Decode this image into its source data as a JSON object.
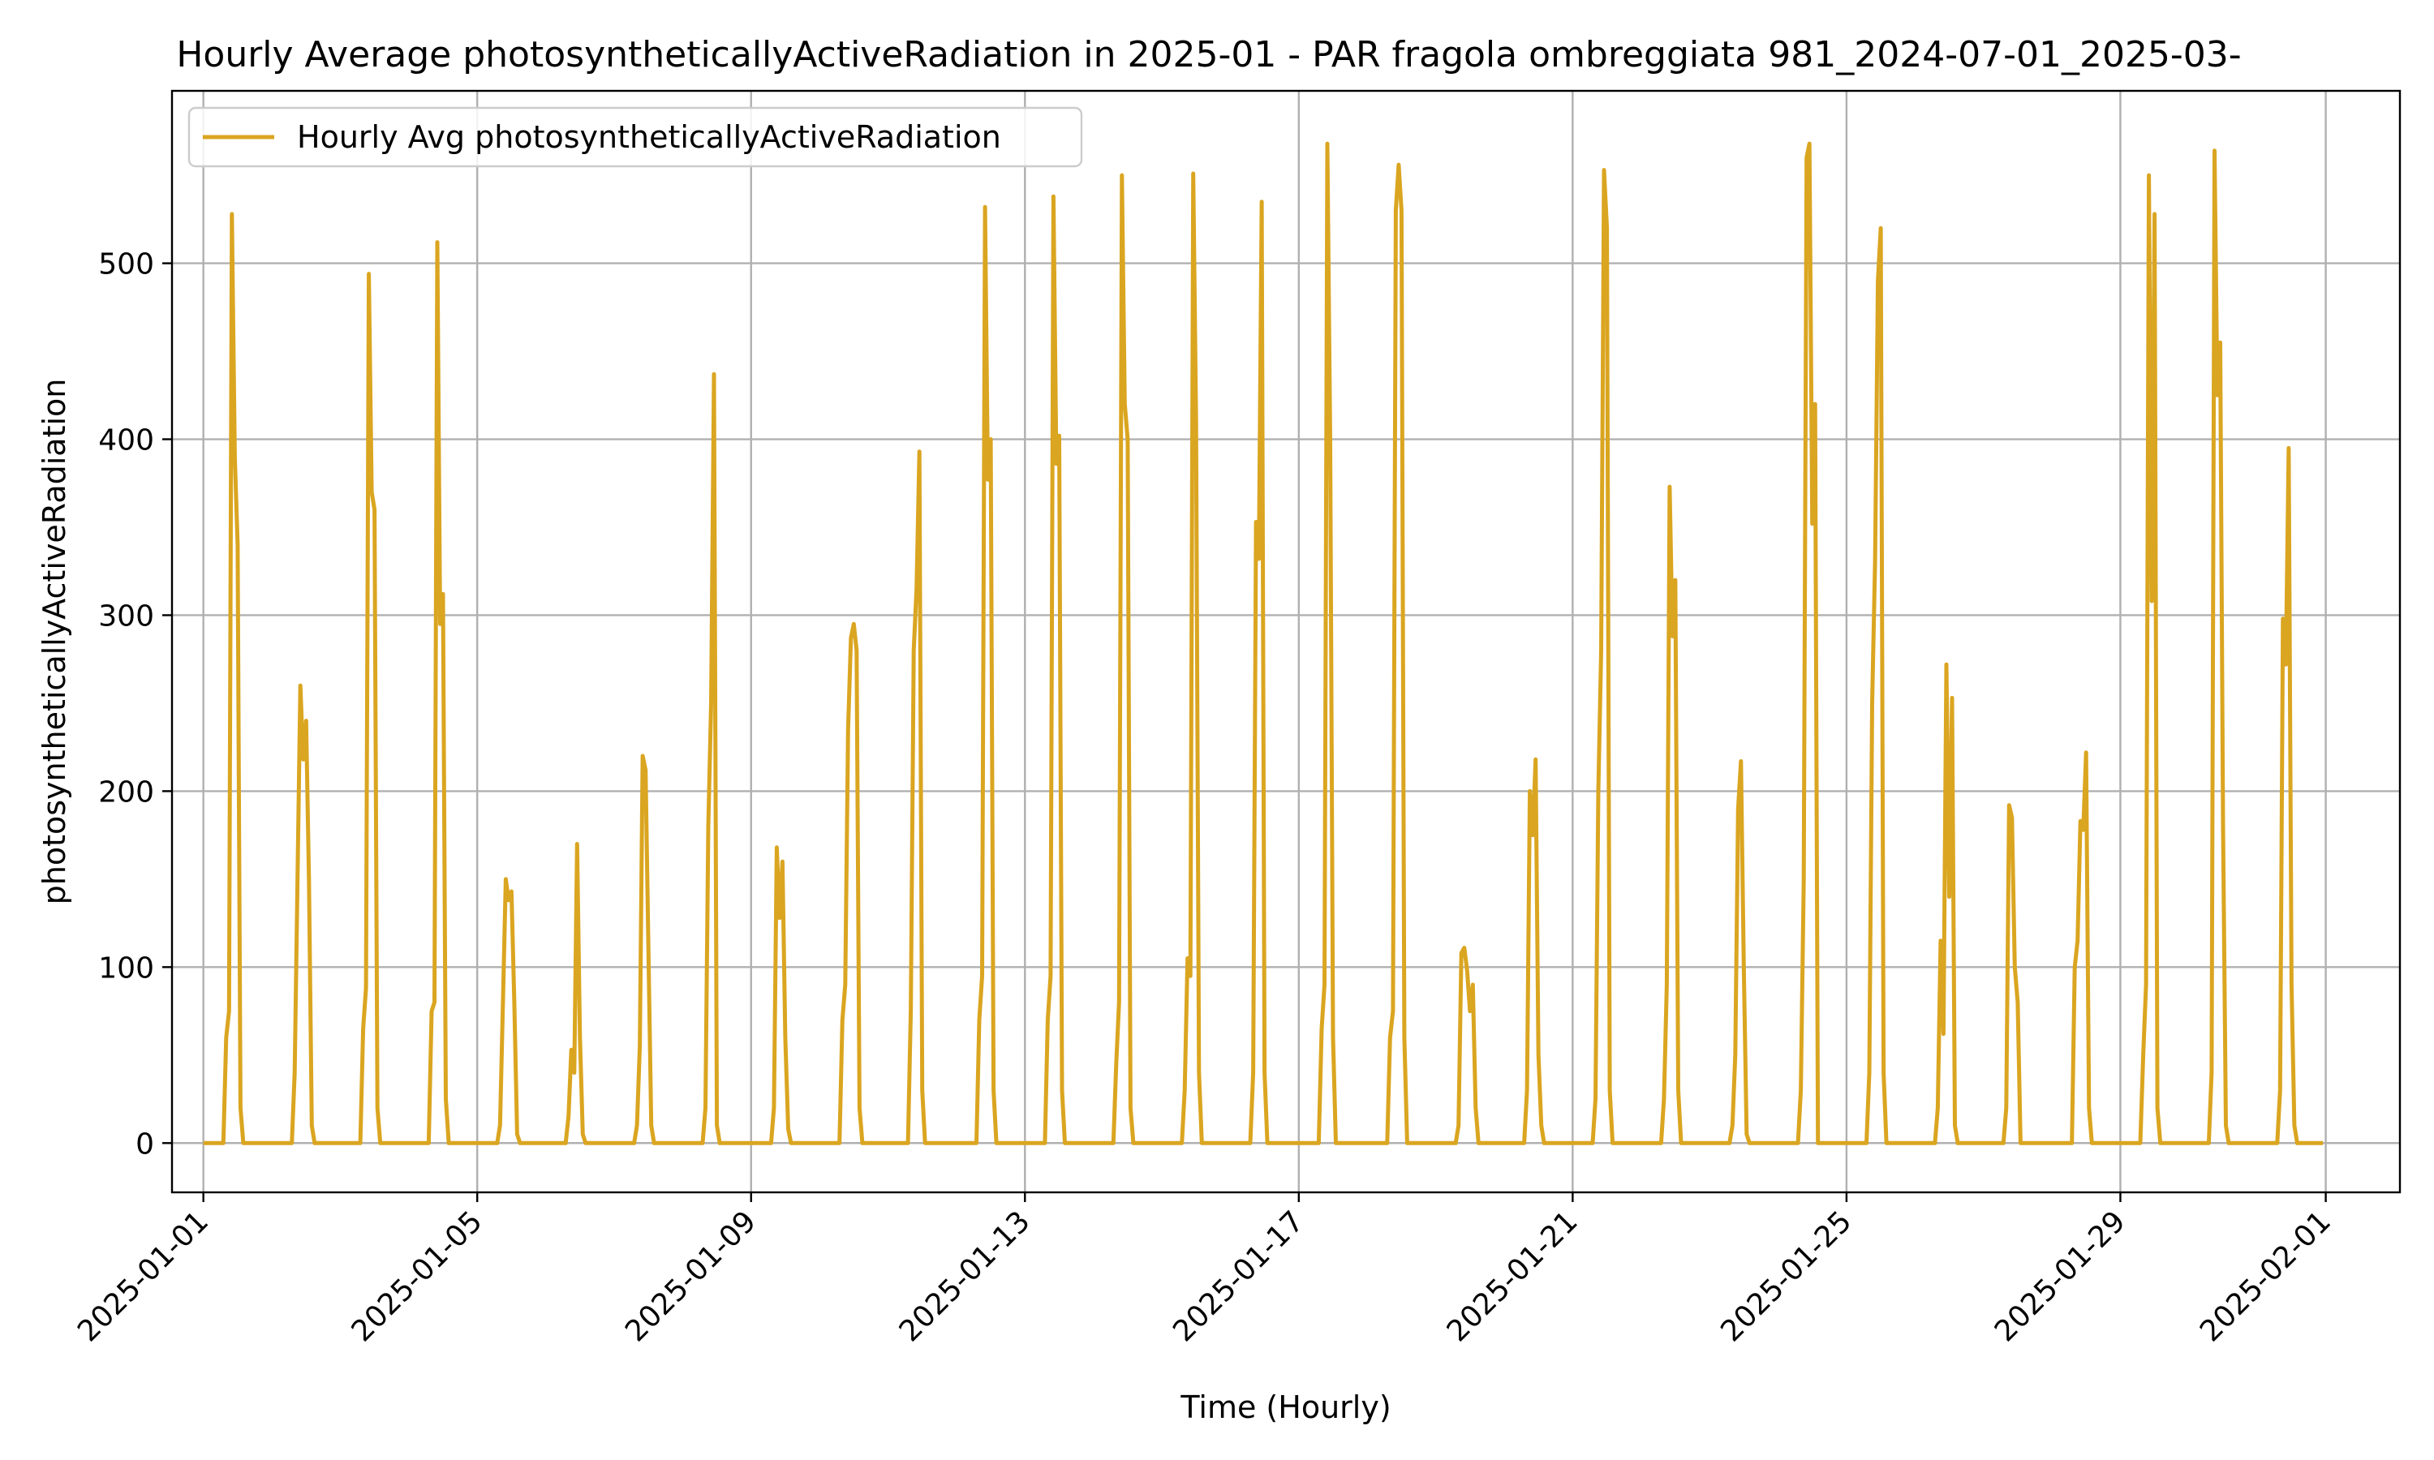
{
  "chart_data": {
    "type": "line",
    "title": "Hourly Average photosyntheticallyActiveRadiation in 2025-01 - PAR fragola ombreggiata 981_2024-07-01_2025-03-",
    "xlabel": "Time (Hourly)",
    "ylabel": "photosyntheticallyActiveRadiation",
    "x_ticks": [
      "2025-01-01",
      "2025-01-05",
      "2025-01-09",
      "2025-01-13",
      "2025-01-17",
      "2025-01-21",
      "2025-01-25",
      "2025-01-29",
      "2025-02-01"
    ],
    "y_ticks": [
      "0",
      "100",
      "200",
      "300",
      "400",
      "500"
    ],
    "xlim": [
      "2024-12-31 13:00",
      "2025-02-02 02:00"
    ],
    "ylim": [
      -28,
      598
    ],
    "grid": true,
    "legend_position": "top-left",
    "series": [
      {
        "name": "Hourly Avg photosyntheticallyActiveRadiation",
        "color": "#daa520",
        "points": [
          [
            "2025-01-01 00:00",
            0
          ],
          [
            "2025-01-01 07:00",
            0
          ],
          [
            "2025-01-01 08:00",
            60
          ],
          [
            "2025-01-01 09:00",
            75
          ],
          [
            "2025-01-01 10:00",
            528
          ],
          [
            "2025-01-01 11:00",
            390
          ],
          [
            "2025-01-01 12:00",
            340
          ],
          [
            "2025-01-01 13:00",
            20
          ],
          [
            "2025-01-01 14:00",
            0
          ],
          [
            "2025-01-02 07:00",
            0
          ],
          [
            "2025-01-02 08:00",
            40
          ],
          [
            "2025-01-02 09:00",
            150
          ],
          [
            "2025-01-02 10:00",
            260
          ],
          [
            "2025-01-02 11:00",
            218
          ],
          [
            "2025-01-02 12:00",
            240
          ],
          [
            "2025-01-02 13:00",
            150
          ],
          [
            "2025-01-02 14:00",
            10
          ],
          [
            "2025-01-02 15:00",
            0
          ],
          [
            "2025-01-03 07:00",
            0
          ],
          [
            "2025-01-03 08:00",
            65
          ],
          [
            "2025-01-03 09:00",
            88
          ],
          [
            "2025-01-03 10:00",
            494
          ],
          [
            "2025-01-03 11:00",
            370
          ],
          [
            "2025-01-03 12:00",
            360
          ],
          [
            "2025-01-03 13:00",
            20
          ],
          [
            "2025-01-03 14:00",
            0
          ],
          [
            "2025-01-04 07:00",
            0
          ],
          [
            "2025-01-04 08:00",
            75
          ],
          [
            "2025-01-04 09:00",
            80
          ],
          [
            "2025-01-04 10:00",
            512
          ],
          [
            "2025-01-04 11:00",
            295
          ],
          [
            "2025-01-04 12:00",
            312
          ],
          [
            "2025-01-04 13:00",
            25
          ],
          [
            "2025-01-04 14:00",
            0
          ],
          [
            "2025-01-05 07:00",
            0
          ],
          [
            "2025-01-05 08:00",
            10
          ],
          [
            "2025-01-05 09:00",
            80
          ],
          [
            "2025-01-05 10:00",
            150
          ],
          [
            "2025-01-05 11:00",
            138
          ],
          [
            "2025-01-05 12:00",
            143
          ],
          [
            "2025-01-05 13:00",
            80
          ],
          [
            "2025-01-05 14:00",
            5
          ],
          [
            "2025-01-05 15:00",
            0
          ],
          [
            "2025-01-06 07:00",
            0
          ],
          [
            "2025-01-06 08:00",
            15
          ],
          [
            "2025-01-06 09:00",
            53
          ],
          [
            "2025-01-06 10:00",
            40
          ],
          [
            "2025-01-06 11:00",
            170
          ],
          [
            "2025-01-06 12:00",
            60
          ],
          [
            "2025-01-06 13:00",
            5
          ],
          [
            "2025-01-06 14:00",
            0
          ],
          [
            "2025-01-07 07:00",
            0
          ],
          [
            "2025-01-07 08:00",
            10
          ],
          [
            "2025-01-07 09:00",
            55
          ],
          [
            "2025-01-07 10:00",
            220
          ],
          [
            "2025-01-07 11:00",
            212
          ],
          [
            "2025-01-07 12:00",
            110
          ],
          [
            "2025-01-07 13:00",
            10
          ],
          [
            "2025-01-07 14:00",
            0
          ],
          [
            "2025-01-08 07:00",
            0
          ],
          [
            "2025-01-08 08:00",
            20
          ],
          [
            "2025-01-08 09:00",
            180
          ],
          [
            "2025-01-08 10:00",
            250
          ],
          [
            "2025-01-08 11:00",
            437
          ],
          [
            "2025-01-08 12:00",
            10
          ],
          [
            "2025-01-08 13:00",
            0
          ],
          [
            "2025-01-09 07:00",
            0
          ],
          [
            "2025-01-09 08:00",
            20
          ],
          [
            "2025-01-09 09:00",
            168
          ],
          [
            "2025-01-09 10:00",
            128
          ],
          [
            "2025-01-09 11:00",
            160
          ],
          [
            "2025-01-09 12:00",
            60
          ],
          [
            "2025-01-09 13:00",
            8
          ],
          [
            "2025-01-09 14:00",
            0
          ],
          [
            "2025-01-10 07:00",
            0
          ],
          [
            "2025-01-10 08:00",
            70
          ],
          [
            "2025-01-10 09:00",
            90
          ],
          [
            "2025-01-10 10:00",
            235
          ],
          [
            "2025-01-10 11:00",
            287
          ],
          [
            "2025-01-10 12:00",
            295
          ],
          [
            "2025-01-10 13:00",
            280
          ],
          [
            "2025-01-10 14:00",
            20
          ],
          [
            "2025-01-10 15:00",
            0
          ],
          [
            "2025-01-11 07:00",
            0
          ],
          [
            "2025-01-11 08:00",
            75
          ],
          [
            "2025-01-11 09:00",
            280
          ],
          [
            "2025-01-11 10:00",
            315
          ],
          [
            "2025-01-11 11:00",
            393
          ],
          [
            "2025-01-11 12:00",
            30
          ],
          [
            "2025-01-11 13:00",
            0
          ],
          [
            "2025-01-12 07:00",
            0
          ],
          [
            "2025-01-12 08:00",
            70
          ],
          [
            "2025-01-12 09:00",
            95
          ],
          [
            "2025-01-12 10:00",
            532
          ],
          [
            "2025-01-12 11:00",
            377
          ],
          [
            "2025-01-12 12:00",
            400
          ],
          [
            "2025-01-12 13:00",
            30
          ],
          [
            "2025-01-12 14:00",
            0
          ],
          [
            "2025-01-13 07:00",
            0
          ],
          [
            "2025-01-13 08:00",
            70
          ],
          [
            "2025-01-13 09:00",
            95
          ],
          [
            "2025-01-13 10:00",
            538
          ],
          [
            "2025-01-13 11:00",
            386
          ],
          [
            "2025-01-13 12:00",
            402
          ],
          [
            "2025-01-13 13:00",
            30
          ],
          [
            "2025-01-13 14:00",
            0
          ],
          [
            "2025-01-14 07:00",
            0
          ],
          [
            "2025-01-14 08:00",
            45
          ],
          [
            "2025-01-14 09:00",
            80
          ],
          [
            "2025-01-14 10:00",
            550
          ],
          [
            "2025-01-14 11:00",
            420
          ],
          [
            "2025-01-14 12:00",
            400
          ],
          [
            "2025-01-14 13:00",
            20
          ],
          [
            "2025-01-14 14:00",
            0
          ],
          [
            "2025-01-15 07:00",
            0
          ],
          [
            "2025-01-15 08:00",
            30
          ],
          [
            "2025-01-15 09:00",
            105
          ],
          [
            "2025-01-15 10:00",
            95
          ],
          [
            "2025-01-15 11:00",
            551
          ],
          [
            "2025-01-15 12:00",
            410
          ],
          [
            "2025-01-15 13:00",
            40
          ],
          [
            "2025-01-15 14:00",
            0
          ],
          [
            "2025-01-16 07:00",
            0
          ],
          [
            "2025-01-16 08:00",
            40
          ],
          [
            "2025-01-16 09:00",
            353
          ],
          [
            "2025-01-16 10:00",
            332
          ],
          [
            "2025-01-16 11:00",
            535
          ],
          [
            "2025-01-16 12:00",
            40
          ],
          [
            "2025-01-16 13:00",
            0
          ],
          [
            "2025-01-17 07:00",
            0
          ],
          [
            "2025-01-17 08:00",
            65
          ],
          [
            "2025-01-17 09:00",
            90
          ],
          [
            "2025-01-17 10:00",
            568
          ],
          [
            "2025-01-17 11:00",
            400
          ],
          [
            "2025-01-17 12:00",
            60
          ],
          [
            "2025-01-17 13:00",
            0
          ],
          [
            "2025-01-18 07:00",
            0
          ],
          [
            "2025-01-18 08:00",
            60
          ],
          [
            "2025-01-18 09:00",
            75
          ],
          [
            "2025-01-18 10:00",
            530
          ],
          [
            "2025-01-18 11:00",
            556
          ],
          [
            "2025-01-18 12:00",
            530
          ],
          [
            "2025-01-18 13:00",
            60
          ],
          [
            "2025-01-18 14:00",
            0
          ],
          [
            "2025-01-19 07:00",
            0
          ],
          [
            "2025-01-19 08:00",
            10
          ],
          [
            "2025-01-19 09:00",
            108
          ],
          [
            "2025-01-19 10:00",
            111
          ],
          [
            "2025-01-19 11:00",
            98
          ],
          [
            "2025-01-19 12:00",
            75
          ],
          [
            "2025-01-19 13:00",
            90
          ],
          [
            "2025-01-19 14:00",
            20
          ],
          [
            "2025-01-19 15:00",
            0
          ],
          [
            "2025-01-20 07:00",
            0
          ],
          [
            "2025-01-20 08:00",
            30
          ],
          [
            "2025-01-20 09:00",
            200
          ],
          [
            "2025-01-20 10:00",
            175
          ],
          [
            "2025-01-20 11:00",
            218
          ],
          [
            "2025-01-20 12:00",
            50
          ],
          [
            "2025-01-20 13:00",
            10
          ],
          [
            "2025-01-20 14:00",
            0
          ],
          [
            "2025-01-21 07:00",
            0
          ],
          [
            "2025-01-21 08:00",
            25
          ],
          [
            "2025-01-21 09:00",
            200
          ],
          [
            "2025-01-21 10:00",
            280
          ],
          [
            "2025-01-21 11:00",
            553
          ],
          [
            "2025-01-21 12:00",
            520
          ],
          [
            "2025-01-21 13:00",
            30
          ],
          [
            "2025-01-21 14:00",
            0
          ],
          [
            "2025-01-22 07:00",
            0
          ],
          [
            "2025-01-22 08:00",
            25
          ],
          [
            "2025-01-22 09:00",
            90
          ],
          [
            "2025-01-22 10:00",
            373
          ],
          [
            "2025-01-22 11:00",
            288
          ],
          [
            "2025-01-22 12:00",
            320
          ],
          [
            "2025-01-22 13:00",
            30
          ],
          [
            "2025-01-22 14:00",
            0
          ],
          [
            "2025-01-23 07:00",
            0
          ],
          [
            "2025-01-23 08:00",
            10
          ],
          [
            "2025-01-23 09:00",
            50
          ],
          [
            "2025-01-23 10:00",
            190
          ],
          [
            "2025-01-23 11:00",
            217
          ],
          [
            "2025-01-23 12:00",
            100
          ],
          [
            "2025-01-23 13:00",
            5
          ],
          [
            "2025-01-23 14:00",
            0
          ],
          [
            "2025-01-24 07:00",
            0
          ],
          [
            "2025-01-24 08:00",
            30
          ],
          [
            "2025-01-24 09:00",
            150
          ],
          [
            "2025-01-24 10:00",
            560
          ],
          [
            "2025-01-24 11:00",
            568
          ],
          [
            "2025-01-24 12:00",
            352
          ],
          [
            "2025-01-24 13:00",
            420
          ],
          [
            "2025-01-24 14:00",
            0
          ],
          [
            "2025-01-25 07:00",
            0
          ],
          [
            "2025-01-25 08:00",
            40
          ],
          [
            "2025-01-25 09:00",
            250
          ],
          [
            "2025-01-25 10:00",
            330
          ],
          [
            "2025-01-25 11:00",
            490
          ],
          [
            "2025-01-25 12:00",
            520
          ],
          [
            "2025-01-25 13:00",
            40
          ],
          [
            "2025-01-25 14:00",
            0
          ],
          [
            "2025-01-26 07:00",
            0
          ],
          [
            "2025-01-26 08:00",
            20
          ],
          [
            "2025-01-26 09:00",
            115
          ],
          [
            "2025-01-26 10:00",
            62
          ],
          [
            "2025-01-26 11:00",
            272
          ],
          [
            "2025-01-26 12:00",
            140
          ],
          [
            "2025-01-26 13:00",
            253
          ],
          [
            "2025-01-26 14:00",
            10
          ],
          [
            "2025-01-26 15:00",
            0
          ],
          [
            "2025-01-27 07:00",
            0
          ],
          [
            "2025-01-27 08:00",
            20
          ],
          [
            "2025-01-27 09:00",
            192
          ],
          [
            "2025-01-27 10:00",
            185
          ],
          [
            "2025-01-27 11:00",
            100
          ],
          [
            "2025-01-27 12:00",
            80
          ],
          [
            "2025-01-27 13:00",
            0
          ],
          [
            "2025-01-28 07:00",
            0
          ],
          [
            "2025-01-28 08:00",
            100
          ],
          [
            "2025-01-28 09:00",
            115
          ],
          [
            "2025-01-28 10:00",
            183
          ],
          [
            "2025-01-28 11:00",
            178
          ],
          [
            "2025-01-28 12:00",
            222
          ],
          [
            "2025-01-28 13:00",
            20
          ],
          [
            "2025-01-28 14:00",
            0
          ],
          [
            "2025-01-29 07:00",
            0
          ],
          [
            "2025-01-29 08:00",
            50
          ],
          [
            "2025-01-29 09:00",
            90
          ],
          [
            "2025-01-29 10:00",
            550
          ],
          [
            "2025-01-29 11:00",
            308
          ],
          [
            "2025-01-29 12:00",
            528
          ],
          [
            "2025-01-29 13:00",
            20
          ],
          [
            "2025-01-29 14:00",
            0
          ],
          [
            "2025-01-30 07:00",
            0
          ],
          [
            "2025-01-30 08:00",
            40
          ],
          [
            "2025-01-30 09:00",
            564
          ],
          [
            "2025-01-30 10:00",
            425
          ],
          [
            "2025-01-30 11:00",
            455
          ],
          [
            "2025-01-30 12:00",
            180
          ],
          [
            "2025-01-30 13:00",
            10
          ],
          [
            "2025-01-30 14:00",
            0
          ],
          [
            "2025-01-31 07:00",
            0
          ],
          [
            "2025-01-31 08:00",
            30
          ],
          [
            "2025-01-31 09:00",
            298
          ],
          [
            "2025-01-31 10:00",
            272
          ],
          [
            "2025-01-31 11:00",
            395
          ],
          [
            "2025-01-31 12:00",
            90
          ],
          [
            "2025-01-31 13:00",
            10
          ],
          [
            "2025-01-31 14:00",
            0
          ],
          [
            "2025-01-31 23:00",
            0
          ]
        ]
      }
    ]
  }
}
